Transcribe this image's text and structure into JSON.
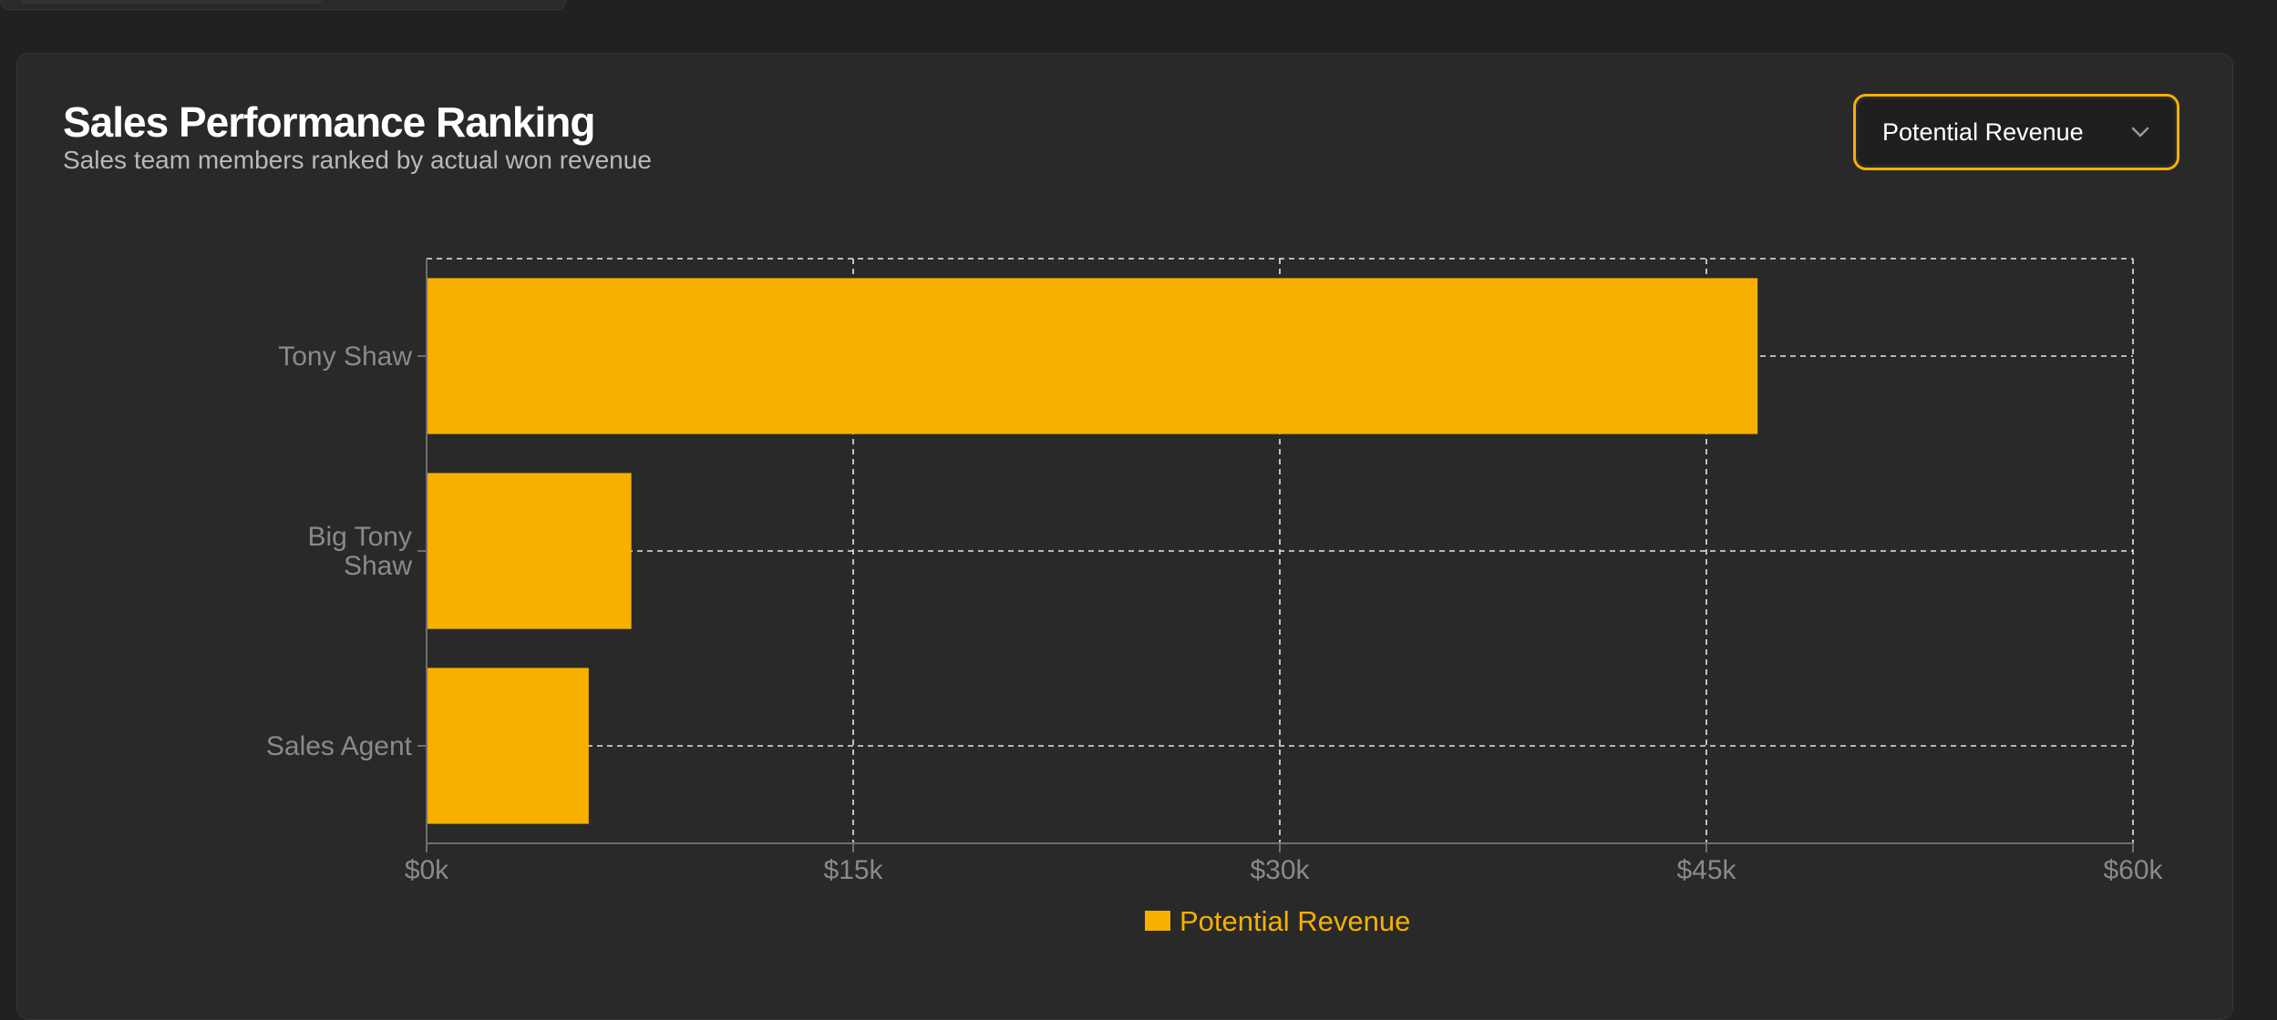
{
  "header": {
    "title": "Sales Performance Ranking",
    "subtitle": "Sales team members ranked by actual won revenue"
  },
  "metric_select": {
    "value": "Potential Revenue",
    "icon": "chevron-down-icon"
  },
  "colors": {
    "page_bg": "#212121",
    "card_bg": "#292929",
    "bar": "#f7b000",
    "accent": "#f5b000",
    "axis_text": "#8a8a8a",
    "grid": "#e6e6e6"
  },
  "chart_data": {
    "type": "bar",
    "orientation": "horizontal",
    "categories": [
      "Tony Shaw",
      "Big Tony Shaw",
      "Sales Agent"
    ],
    "category_lines": [
      [
        "Tony Shaw"
      ],
      [
        "Big Tony",
        "Shaw"
      ],
      [
        "Sales Agent"
      ]
    ],
    "series": [
      {
        "name": "Potential Revenue",
        "values": [
          46800,
          7200,
          5700
        ]
      }
    ],
    "xlim": [
      0,
      60000
    ],
    "x_ticks": [
      0,
      15000,
      30000,
      45000,
      60000
    ],
    "x_tick_labels": [
      "$0k",
      "$15k",
      "$30k",
      "$45k",
      "$60k"
    ],
    "grid": true,
    "grid_style": "dashed",
    "legend_position": "bottom-center"
  }
}
